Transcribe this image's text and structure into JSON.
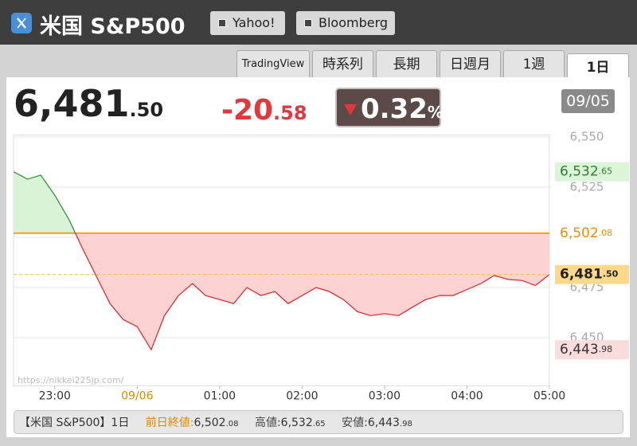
{
  "header": {
    "title": "米国 S&P500",
    "links": [
      "Yahoo!",
      "Bloomberg"
    ]
  },
  "tabs": {
    "items": [
      "TradingView",
      "時系列",
      "長期",
      "日週月",
      "1週",
      "1日"
    ],
    "active": 5
  },
  "quote": {
    "price": "6,481.50",
    "change": "-20.58",
    "change_percent": "0.32%",
    "date": "09/05"
  },
  "chart_data": {
    "type": "line",
    "x": [
      22.5,
      22.67,
      22.83,
      23,
      23.17,
      23.33,
      23.5,
      23.67,
      23.83,
      24,
      24.17,
      24.33,
      24.5,
      24.67,
      24.83,
      25,
      25.17,
      25.33,
      25.5,
      25.67,
      25.83,
      26,
      26.17,
      26.33,
      26.5,
      26.67,
      26.83,
      27,
      27.17,
      27.33,
      27.5,
      27.67,
      27.83,
      28,
      28.17,
      28.33,
      28.5,
      28.67,
      28.83,
      29
    ],
    "values": [
      6532.65,
      6529,
      6531,
      6521,
      6509,
      6495,
      6481,
      6467,
      6459,
      6455.5,
      6443.98,
      6461,
      6471,
      6477,
      6471,
      6469,
      6467,
      6475,
      6471,
      6473,
      6467,
      6471,
      6475,
      6473,
      6469,
      6463,
      6461,
      6462,
      6461,
      6465,
      6469,
      6471,
      6471,
      6474,
      6477,
      6481,
      6479,
      6478.5,
      6476,
      6481.5
    ],
    "baseline": 6502.08,
    "up_color": "#2e8b2e",
    "down_color": "#e02020",
    "up_fill": "#d8f3d6",
    "down_fill": "#fdd2d2",
    "baseline_color": "#f0a020",
    "xlim": [
      22.5,
      29
    ],
    "ylim": [
      6426,
      6551
    ],
    "xticks": [
      {
        "value": 23,
        "label": "23:00"
      },
      {
        "value": 24,
        "label": "09/06"
      },
      {
        "value": 25,
        "label": "01:00"
      },
      {
        "value": 26,
        "label": "02:00"
      },
      {
        "value": 27,
        "label": "03:00"
      },
      {
        "value": 28,
        "label": "04:00"
      },
      {
        "value": 29,
        "label": "05:00"
      }
    ],
    "yticks": [
      {
        "value": 6450,
        "label": "6,450"
      },
      {
        "value": 6475,
        "label": "6,475"
      },
      {
        "value": 6500,
        "label": "6,500"
      },
      {
        "value": 6525,
        "label": "6,525"
      },
      {
        "value": 6550,
        "label": "6,550"
      }
    ],
    "grid": true,
    "markers": [
      {
        "value": 6532.65,
        "label": "6,532.65",
        "color": "#2e7d32",
        "background": "#dcf5d8"
      },
      {
        "value": 6502.08,
        "label": "6,502.08",
        "color": "#f08c00",
        "background": "#ffffff"
      },
      {
        "value": 6481.5,
        "label": "6,481.50",
        "color": "#222222",
        "background": "#fbd98a"
      },
      {
        "value": 6443.98,
        "label": "6,443.98",
        "color": "#333333",
        "background": "#fbdcdc"
      }
    ],
    "source": "https://nikkei225jp.com/"
  },
  "footer": {
    "label": "【米国 S&P500】1日",
    "items": [
      {
        "name": "前日終値:",
        "value": "6,502.08"
      },
      {
        "name": "高値:",
        "value": "6,532.65"
      },
      {
        "name": "安値:",
        "value": "6,443.98"
      }
    ]
  }
}
